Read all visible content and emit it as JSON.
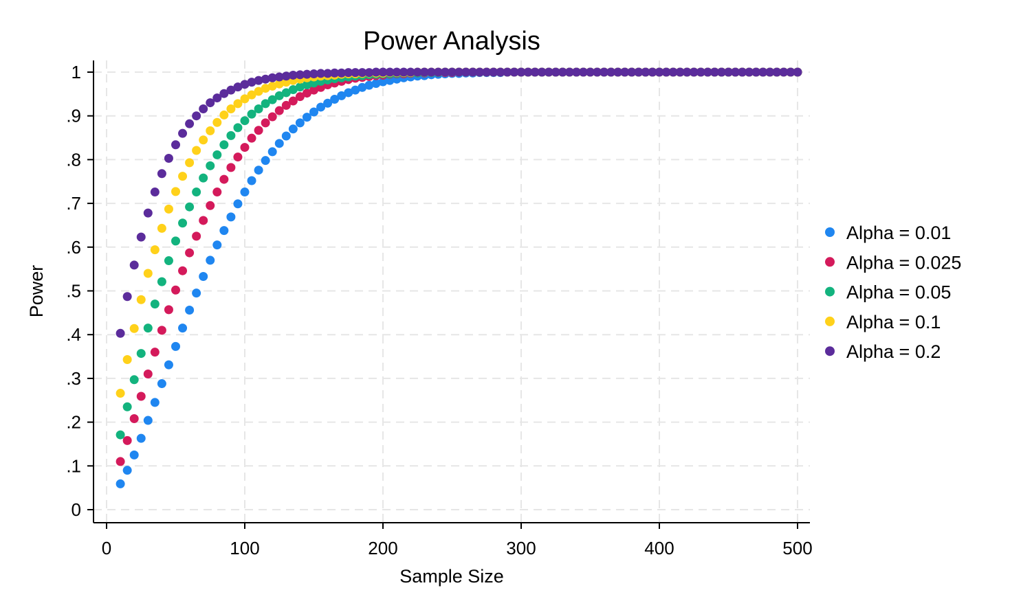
{
  "chart_data": {
    "type": "scatter",
    "title": "Power Analysis",
    "xlabel": "Sample Size",
    "ylabel": "Power",
    "xlim": [
      0,
      500
    ],
    "ylim": [
      0,
      1
    ],
    "x_ticks": [
      0,
      100,
      200,
      300,
      400,
      500
    ],
    "x_tick_labels": [
      "0",
      "100",
      "200",
      "300",
      "400",
      "500"
    ],
    "y_ticks": [
      0,
      0.1,
      0.2,
      0.3,
      0.4,
      0.5,
      0.6,
      0.7,
      0.8,
      0.9,
      1
    ],
    "y_tick_labels": [
      "0",
      ".1",
      ".2",
      ".3",
      ".4",
      ".5",
      ".6",
      ".7",
      ".8",
      ".9",
      "1"
    ],
    "grid": true,
    "legend_position": "right",
    "x_range": {
      "start": 10,
      "end": 500,
      "step": 5
    },
    "series": [
      {
        "name": "Alpha = 0.01",
        "color": "#1f86f0",
        "values": [
          0.059,
          0.09,
          0.125,
          0.163,
          0.204,
          0.245,
          0.288,
          0.331,
          0.373,
          0.415,
          0.456,
          0.495,
          0.533,
          0.57,
          0.605,
          0.638,
          0.669,
          0.699,
          0.726,
          0.752,
          0.776,
          0.798,
          0.818,
          0.837,
          0.854,
          0.87,
          0.884,
          0.897,
          0.909,
          0.92,
          0.929,
          0.938,
          0.946,
          0.953,
          0.959,
          0.965,
          0.97,
          0.974,
          0.978,
          0.981,
          0.984,
          0.987,
          0.989,
          0.991,
          0.992,
          0.994,
          0.995,
          0.996,
          0.997,
          0.997,
          0.998,
          0.998,
          0.999,
          0.999,
          0.999,
          0.999,
          1.0,
          1.0,
          1.0,
          1.0,
          1.0,
          1.0,
          1.0,
          1.0,
          1.0,
          1.0,
          1.0,
          1.0,
          1.0,
          1.0,
          1.0,
          1.0,
          1.0,
          1.0,
          1.0,
          1.0,
          1.0,
          1.0,
          1.0,
          1.0,
          1.0,
          1.0,
          1.0,
          1.0,
          1.0,
          1.0,
          1.0,
          1.0,
          1.0,
          1.0,
          1.0,
          1.0,
          1.0,
          1.0,
          1.0,
          1.0,
          1.0,
          1.0,
          1.0
        ]
      },
      {
        "name": "Alpha = 0.025",
        "color": "#d41a5b",
        "values": [
          0.11,
          0.158,
          0.208,
          0.259,
          0.31,
          0.36,
          0.41,
          0.457,
          0.502,
          0.546,
          0.587,
          0.625,
          0.661,
          0.695,
          0.726,
          0.755,
          0.782,
          0.806,
          0.828,
          0.849,
          0.867,
          0.884,
          0.898,
          0.912,
          0.924,
          0.934,
          0.944,
          0.952,
          0.959,
          0.965,
          0.971,
          0.975,
          0.979,
          0.983,
          0.986,
          0.988,
          0.99,
          0.992,
          0.993,
          0.995,
          0.996,
          0.996,
          0.997,
          0.998,
          0.998,
          0.999,
          0.999,
          0.999,
          0.999,
          1.0,
          1.0,
          1.0,
          1.0,
          1.0,
          1.0,
          1.0,
          1.0,
          1.0,
          1.0,
          1.0,
          1.0,
          1.0,
          1.0,
          1.0,
          1.0,
          1.0,
          1.0,
          1.0,
          1.0,
          1.0,
          1.0,
          1.0,
          1.0,
          1.0,
          1.0,
          1.0,
          1.0,
          1.0,
          1.0,
          1.0,
          1.0,
          1.0,
          1.0,
          1.0,
          1.0,
          1.0,
          1.0,
          1.0,
          1.0,
          1.0,
          1.0,
          1.0,
          1.0,
          1.0,
          1.0,
          1.0,
          1.0,
          1.0,
          1.0
        ]
      },
      {
        "name": "Alpha = 0.05",
        "color": "#13b37e",
        "values": [
          0.171,
          0.235,
          0.297,
          0.357,
          0.415,
          0.47,
          0.521,
          0.569,
          0.614,
          0.655,
          0.692,
          0.726,
          0.758,
          0.786,
          0.811,
          0.834,
          0.855,
          0.873,
          0.889,
          0.904,
          0.916,
          0.928,
          0.937,
          0.946,
          0.953,
          0.96,
          0.966,
          0.971,
          0.975,
          0.979,
          0.982,
          0.985,
          0.987,
          0.989,
          0.991,
          0.992,
          0.994,
          0.995,
          0.996,
          0.996,
          0.997,
          0.998,
          0.998,
          0.998,
          0.999,
          0.999,
          0.999,
          1.0,
          1.0,
          1.0,
          1.0,
          1.0,
          1.0,
          1.0,
          1.0,
          1.0,
          1.0,
          1.0,
          1.0,
          1.0,
          1.0,
          1.0,
          1.0,
          1.0,
          1.0,
          1.0,
          1.0,
          1.0,
          1.0,
          1.0,
          1.0,
          1.0,
          1.0,
          1.0,
          1.0,
          1.0,
          1.0,
          1.0,
          1.0,
          1.0,
          1.0,
          1.0,
          1.0,
          1.0,
          1.0,
          1.0,
          1.0,
          1.0,
          1.0,
          1.0,
          1.0,
          1.0,
          1.0,
          1.0,
          1.0,
          1.0,
          1.0,
          1.0,
          1.0
        ]
      },
      {
        "name": "Alpha = 0.1",
        "color": "#ffd11a",
        "values": [
          0.266,
          0.343,
          0.414,
          0.48,
          0.54,
          0.594,
          0.643,
          0.687,
          0.727,
          0.762,
          0.793,
          0.821,
          0.845,
          0.866,
          0.885,
          0.902,
          0.916,
          0.928,
          0.939,
          0.948,
          0.956,
          0.963,
          0.968,
          0.973,
          0.977,
          0.981,
          0.984,
          0.987,
          0.989,
          0.991,
          0.992,
          0.993,
          0.995,
          0.996,
          0.996,
          0.997,
          0.998,
          0.998,
          0.998,
          0.999,
          0.999,
          0.999,
          0.999,
          1.0,
          1.0,
          1.0,
          1.0,
          1.0,
          1.0,
          1.0,
          1.0,
          1.0,
          1.0,
          1.0,
          1.0,
          1.0,
          1.0,
          1.0,
          1.0,
          1.0,
          1.0,
          1.0,
          1.0,
          1.0,
          1.0,
          1.0,
          1.0,
          1.0,
          1.0,
          1.0,
          1.0,
          1.0,
          1.0,
          1.0,
          1.0,
          1.0,
          1.0,
          1.0,
          1.0,
          1.0,
          1.0,
          1.0,
          1.0,
          1.0,
          1.0,
          1.0,
          1.0,
          1.0,
          1.0,
          1.0,
          1.0,
          1.0,
          1.0,
          1.0,
          1.0,
          1.0,
          1.0,
          1.0,
          1.0
        ]
      },
      {
        "name": "Alpha = 0.2",
        "color": "#5b2c9b",
        "values": [
          0.403,
          0.487,
          0.559,
          0.623,
          0.678,
          0.726,
          0.768,
          0.803,
          0.834,
          0.86,
          0.882,
          0.9,
          0.916,
          0.93,
          0.941,
          0.951,
          0.959,
          0.966,
          0.972,
          0.977,
          0.981,
          0.984,
          0.987,
          0.989,
          0.991,
          0.993,
          0.994,
          0.995,
          0.996,
          0.997,
          0.997,
          0.998,
          0.998,
          0.999,
          0.999,
          0.999,
          0.999,
          1.0,
          1.0,
          1.0,
          1.0,
          1.0,
          1.0,
          1.0,
          1.0,
          1.0,
          1.0,
          1.0,
          1.0,
          1.0,
          1.0,
          1.0,
          1.0,
          1.0,
          1.0,
          1.0,
          1.0,
          1.0,
          1.0,
          1.0,
          1.0,
          1.0,
          1.0,
          1.0,
          1.0,
          1.0,
          1.0,
          1.0,
          1.0,
          1.0,
          1.0,
          1.0,
          1.0,
          1.0,
          1.0,
          1.0,
          1.0,
          1.0,
          1.0,
          1.0,
          1.0,
          1.0,
          1.0,
          1.0,
          1.0,
          1.0,
          1.0,
          1.0,
          1.0,
          1.0,
          1.0,
          1.0,
          1.0,
          1.0,
          1.0,
          1.0,
          1.0,
          1.0,
          1.0
        ]
      }
    ]
  }
}
